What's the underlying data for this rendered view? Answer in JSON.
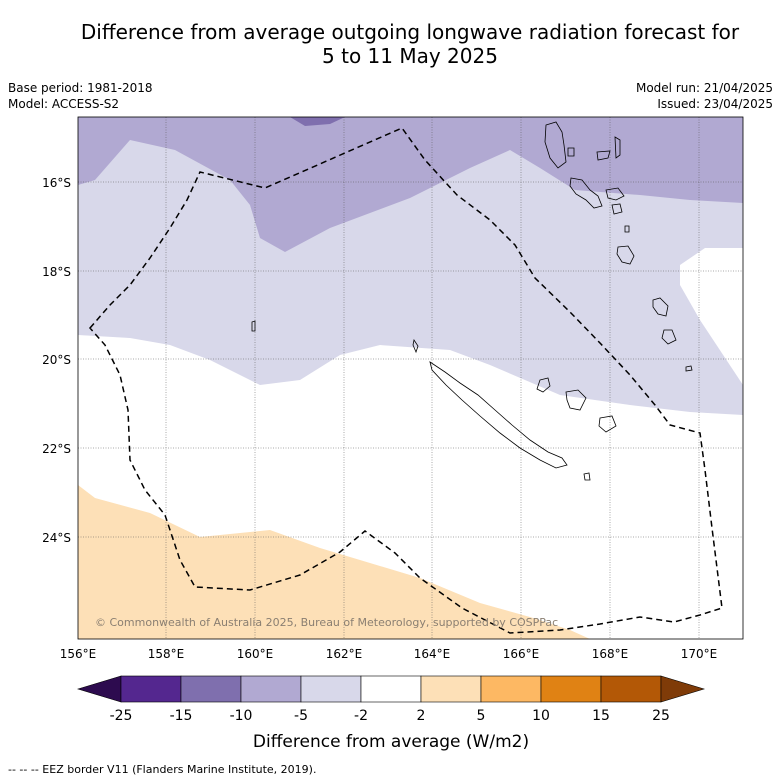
{
  "title_line1": "Difference from average outgoing longwave radiation forecast for",
  "title_line2": "5 to 11 May 2025",
  "meta_left": [
    "Base period: 1981-2018",
    "Model: ACCESS-S2"
  ],
  "meta_right": [
    "Model run: 21/04/2025",
    "Issued: 23/04/2025"
  ],
  "copyright": "© Commonwealth of Australia 2025, Bureau of Meteorology, supported by COSPPac",
  "lat_labels": [
    "16°S",
    "18°S",
    "20°S",
    "22°S",
    "24°S"
  ],
  "lon_labels": [
    "156°E",
    "158°E",
    "160°E",
    "162°E",
    "164°E",
    "166°E",
    "168°E",
    "170°E"
  ],
  "colorbar": {
    "tick_labels": [
      "-25",
      "-15",
      "-10",
      "-5",
      "-2",
      "2",
      "5",
      "10",
      "15",
      "25"
    ],
    "colors": [
      "#2d0b4f",
      "#54278f",
      "#7f6fae",
      "#b1a9d2",
      "#d8d8ea",
      "#ffffff",
      "#fde0b7",
      "#fdb863",
      "#e08214",
      "#b35806",
      "#7f3b08"
    ],
    "label": "Difference from average (W/m2)"
  },
  "footer_note": "--  --  -- EEZ border V11 (Flanders Marine Institute, 2019)."
}
